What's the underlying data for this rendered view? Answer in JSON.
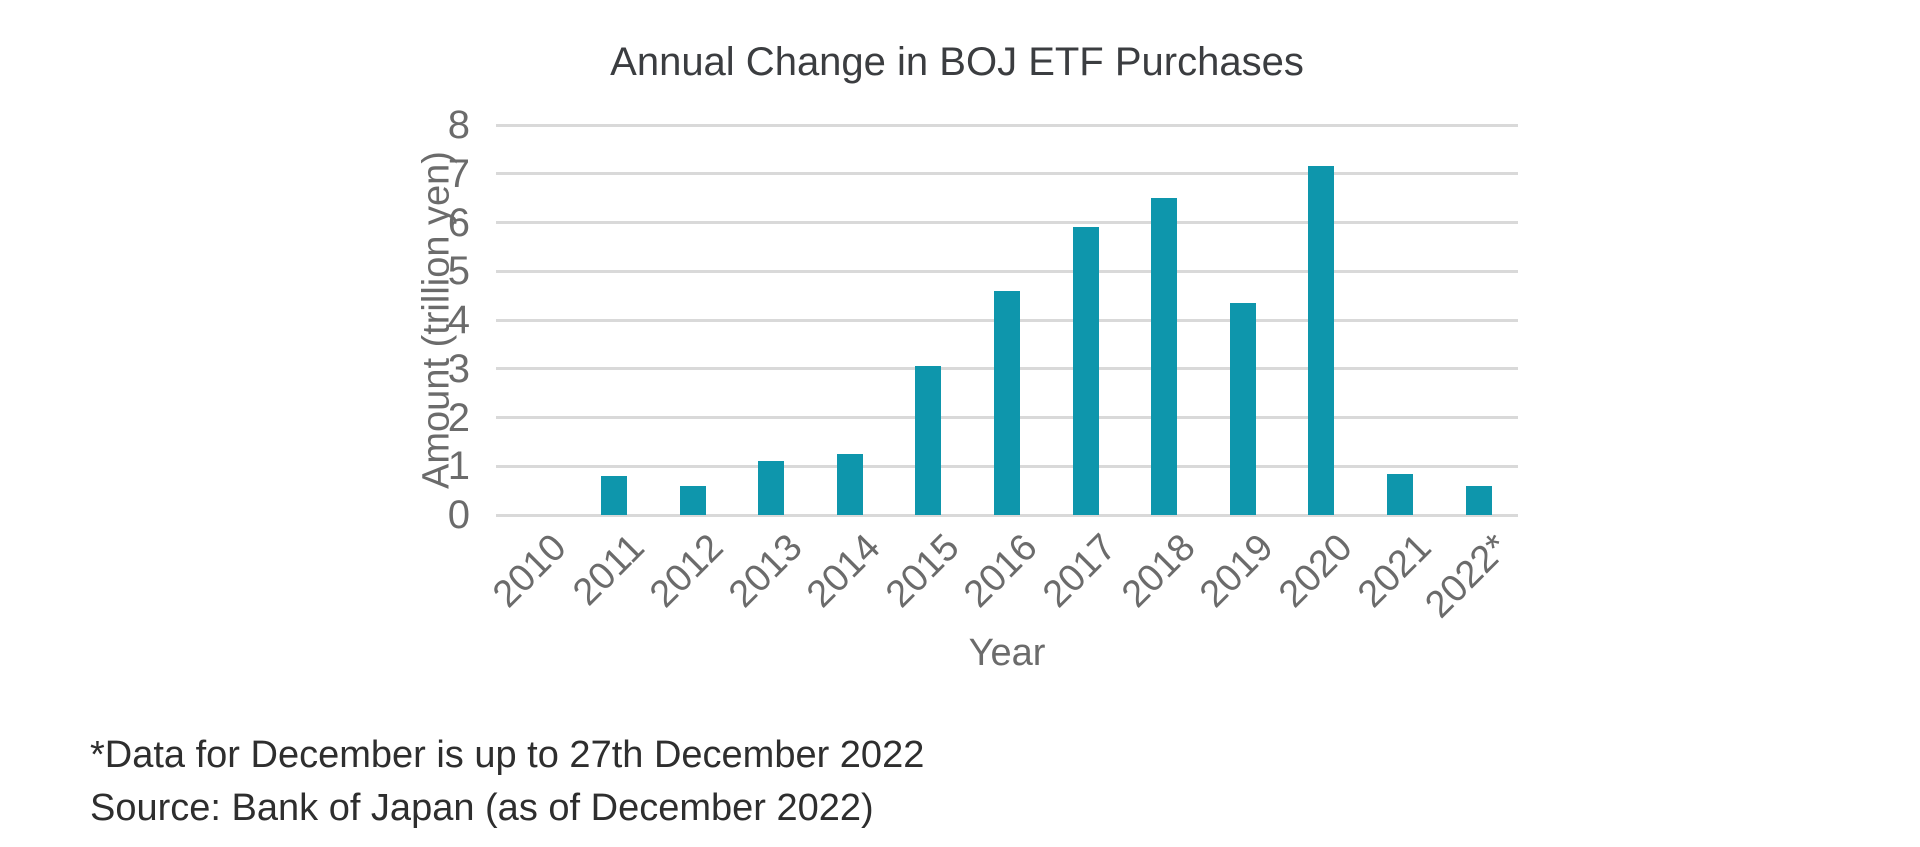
{
  "page": {
    "background_color": "#ffffff"
  },
  "chart_data": {
    "type": "bar",
    "title": "Annual Change in BOJ ETF Purchases",
    "xlabel": "Year",
    "ylabel": "Amount (trillion yen)",
    "categories": [
      "2010",
      "2011",
      "2012",
      "2013",
      "2014",
      "2015",
      "2016",
      "2017",
      "2018",
      "2019",
      "2020",
      "2021",
      "2022*"
    ],
    "values": [
      0,
      0.8,
      0.6,
      1.1,
      1.25,
      3.05,
      4.6,
      5.9,
      6.5,
      4.35,
      7.15,
      0.85,
      0.6
    ],
    "ylim": [
      0,
      8
    ],
    "yticks": [
      0,
      1,
      2,
      3,
      4,
      5,
      6,
      7,
      8
    ],
    "grid": true,
    "legend": "none",
    "bar_color": "#0e96ac",
    "gridline_color": "#d9d9d9",
    "axis_text_color": "#6b6b6b",
    "title_color": "#3b3d40"
  },
  "footnotes": {
    "line1": "*Data for December is up to 27th December 2022",
    "line2": "Source: Bank of Japan (as of December 2022)",
    "text_color": "#2e2e2e"
  }
}
